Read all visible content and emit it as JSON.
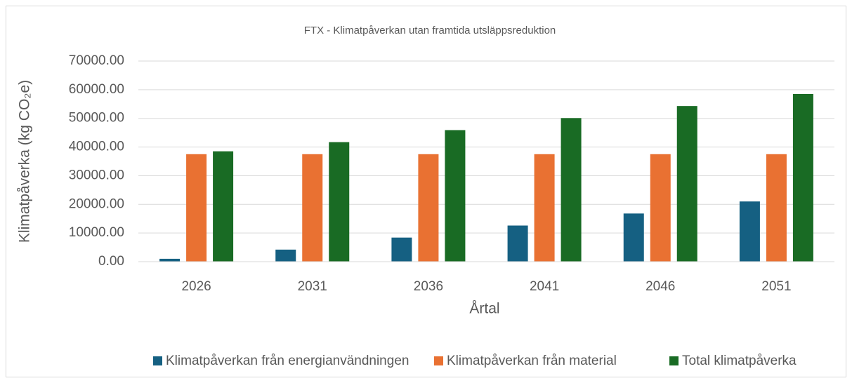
{
  "chart_data": {
    "type": "bar",
    "title": "FTX - Klimatpåverkan utan framtida utsläppsreduktion",
    "x_label": "Årtal",
    "y_label": "Klimatpåverka (kg CO₂e)",
    "categories": [
      "2026",
      "2031",
      "2036",
      "2041",
      "2046",
      "2051"
    ],
    "series": [
      {
        "name": "Klimatpåverkan från energianvändningen",
        "color": "#156082",
        "values": [
          1000,
          4200,
          8400,
          12600,
          16800,
          21000
        ]
      },
      {
        "name": "Klimatpåverkan från material",
        "color": "#e97132",
        "values": [
          37500,
          37500,
          37500,
          37500,
          37500,
          37500
        ]
      },
      {
        "name": "Total klimatpåverka",
        "color": "#196b24",
        "values": [
          38500,
          41700,
          45900,
          50100,
          54300,
          58500
        ]
      }
    ],
    "ylim": [
      0,
      70000
    ],
    "yticks": [
      {
        "value": 0,
        "label": "0.00"
      },
      {
        "value": 10000,
        "label": "10000.00"
      },
      {
        "value": 20000,
        "label": "20000.00"
      },
      {
        "value": 30000,
        "label": "30000.00"
      },
      {
        "value": 40000,
        "label": "40000.00"
      },
      {
        "value": 50000,
        "label": "50000.00"
      },
      {
        "value": 60000,
        "label": "60000.00"
      },
      {
        "value": 70000,
        "label": "70000.00"
      }
    ],
    "grid": true,
    "legend": "bottom"
  }
}
